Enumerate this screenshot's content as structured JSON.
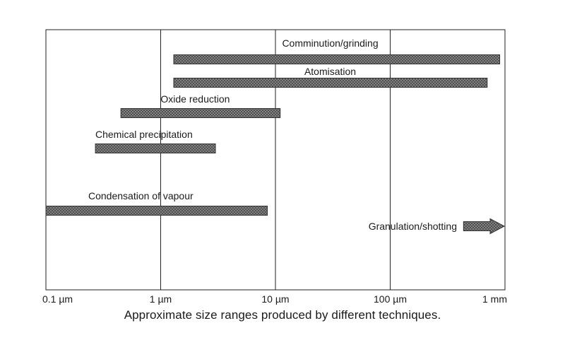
{
  "chart_data": {
    "type": "bar",
    "orientation": "horizontal-range",
    "x_scale": "log",
    "x_range_um": [
      0.1,
      1000
    ],
    "x_ticks": [
      {
        "value": 0.1,
        "label": "0.1 µm"
      },
      {
        "value": 1,
        "label": "1 µm"
      },
      {
        "value": 10,
        "label": "10 µm"
      },
      {
        "value": 100,
        "label": "100 µm"
      },
      {
        "value": 1000,
        "label": "1 mm"
      }
    ],
    "grid_x": true,
    "title": "Approximate size ranges produced by different techniques.",
    "xlabel": "",
    "ylabel": "",
    "series": [
      {
        "name": "Comminution/grinding",
        "min_um": 1.3,
        "max_um": 900
      },
      {
        "name": "Atomisation",
        "min_um": 1.3,
        "max_um": 700
      },
      {
        "name": "Oxide reduction",
        "min_um": 0.45,
        "max_um": 11
      },
      {
        "name": "Chemical precipitation",
        "min_um": 0.27,
        "max_um": 3
      },
      {
        "name": "Condensation of vapour",
        "min_um": 0.1,
        "max_um": 8.5
      },
      {
        "name": "Granulation/shotting",
        "min_um": 400,
        "max_um": 1000,
        "open_ended": true
      }
    ]
  },
  "colors": {
    "bar_fill": "#9a9a9a",
    "bar_stroke": "#333333",
    "frame": "#222222"
  }
}
